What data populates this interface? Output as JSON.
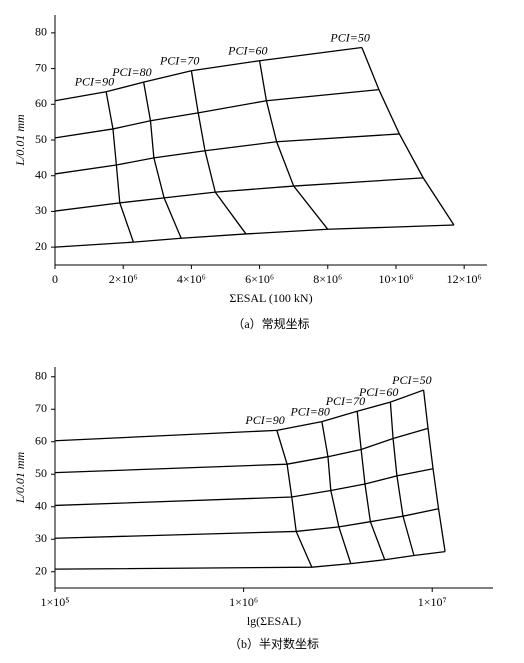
{
  "chart_data": [
    {
      "type": "line",
      "caption": "（a）常规坐标",
      "x_label": "ΣESAL (100 kN)",
      "y_label": "L/0.01 mm",
      "color": "#000000",
      "log_x": false,
      "xlim": [
        0,
        12670000
      ],
      "ylim": [
        15,
        85
      ],
      "xticks": [
        0,
        {
          "value": 2000000,
          "label": "2×10⁶"
        },
        {
          "value": 4000000,
          "label": "4×10⁶"
        },
        {
          "value": 6000000,
          "label": "6×10⁶"
        },
        {
          "value": 8000000,
          "label": "8×10⁶"
        },
        {
          "value": 10000000,
          "label": "10×10⁶"
        },
        {
          "value": 12000000,
          "label": "12×10⁶"
        }
      ],
      "yticks": [
        20,
        30,
        40,
        50,
        60,
        70,
        80
      ],
      "series": [
        {
          "x": [
            0,
            1500000,
            2600000,
            4000000,
            6000000,
            9000000
          ],
          "values": [
            61,
            63.5,
            66.2,
            69.4,
            72.2,
            75.9
          ]
        },
        {
          "x": [
            0,
            1700000,
            2800000,
            4200000,
            6200000,
            9500000
          ],
          "values": [
            50.6,
            53.1,
            55.4,
            57.6,
            61,
            64.1
          ]
        },
        {
          "x": [
            0,
            1800000,
            2900000,
            4400000,
            6500000,
            10100000
          ],
          "values": [
            40.5,
            43,
            45,
            47,
            49.5,
            51.7
          ]
        },
        {
          "x": [
            0,
            1900000,
            3200000,
            4700000,
            7000000,
            10800000
          ],
          "values": [
            30.1,
            32.4,
            33.8,
            35.4,
            37.1,
            39.4
          ]
        },
        {
          "x": [
            0,
            2300000,
            3700000,
            5600000,
            8000000,
            11700000
          ],
          "values": [
            20,
            21.4,
            22.5,
            23.7,
            25,
            26.2
          ]
        },
        {
          "name": "PCI=90",
          "x": [
            1500000,
            1700000,
            1800000,
            1900000,
            2300000
          ],
          "values": [
            63.5,
            53.1,
            43,
            32.4,
            21.4
          ]
        },
        {
          "name": "PCI=80",
          "x": [
            2600000,
            2800000,
            2900000,
            3200000,
            3700000
          ],
          "values": [
            66.2,
            55.4,
            45,
            33.8,
            22.5
          ]
        },
        {
          "name": "PCI=70",
          "x": [
            4000000,
            4200000,
            4400000,
            4700000,
            5600000
          ],
          "values": [
            69.4,
            57.6,
            47,
            35.4,
            23.7
          ]
        },
        {
          "name": "PCI=60",
          "x": [
            6000000,
            6200000,
            6500000,
            7000000,
            8000000
          ],
          "values": [
            72.2,
            61,
            49.5,
            37.1,
            25
          ]
        },
        {
          "name": "PCI=50",
          "x": [
            9000000,
            9500000,
            10100000,
            10800000,
            11700000
          ],
          "values": [
            75.9,
            64.1,
            51.7,
            39.4,
            26.2
          ]
        }
      ]
    },
    {
      "type": "line",
      "caption": "（b）半对数坐标",
      "x_label": "lg(ΣESAL)",
      "y_label": "L/0.01 mm",
      "color": "#000000",
      "log_x": true,
      "xlim": [
        100000,
        21000000
      ],
      "ylim": [
        15,
        83
      ],
      "xticks": [
        {
          "value": 100000,
          "label": "1×10⁵"
        },
        {
          "value": 1000000,
          "label": "1×10⁶"
        },
        {
          "value": 10000000,
          "label": "1×10⁷"
        }
      ],
      "yticks": [
        20,
        30,
        40,
        50,
        60,
        70,
        80
      ],
      "series": [
        {
          "x": [
            100000,
            1500000,
            2600000,
            4000000,
            6000000,
            9000000
          ],
          "values": [
            60.3,
            63.5,
            66.2,
            69.4,
            72.2,
            75.9
          ]
        },
        {
          "x": [
            100000,
            1700000,
            2800000,
            4200000,
            6200000,
            9500000
          ],
          "values": [
            50.5,
            53.1,
            55.4,
            57.6,
            61,
            64.1
          ]
        },
        {
          "x": [
            100000,
            1800000,
            2900000,
            4400000,
            6500000,
            10100000
          ],
          "values": [
            40.4,
            43,
            45,
            47,
            49.5,
            51.7
          ]
        },
        {
          "x": [
            100000,
            1900000,
            3200000,
            4700000,
            7000000,
            10800000
          ],
          "values": [
            30.3,
            32.4,
            33.8,
            35.4,
            37.1,
            39.4
          ]
        },
        {
          "x": [
            100000,
            2300000,
            3700000,
            5600000,
            8000000,
            11700000
          ],
          "values": [
            20.8,
            21.4,
            22.5,
            23.7,
            25,
            26.2
          ]
        },
        {
          "name": "PCI=90",
          "x": [
            1500000,
            1700000,
            1800000,
            1900000,
            2300000
          ],
          "values": [
            63.5,
            53.1,
            43,
            32.4,
            21.4
          ]
        },
        {
          "name": "PCI=80",
          "x": [
            2600000,
            2800000,
            2900000,
            3200000,
            3700000
          ],
          "values": [
            66.2,
            55.4,
            45,
            33.8,
            22.5
          ]
        },
        {
          "name": "PCI=70",
          "x": [
            4000000,
            4200000,
            4400000,
            4700000,
            5600000
          ],
          "values": [
            69.4,
            57.6,
            47,
            35.4,
            23.7
          ]
        },
        {
          "name": "PCI=60",
          "x": [
            6000000,
            6200000,
            6500000,
            7000000,
            8000000
          ],
          "values": [
            72.2,
            61,
            49.5,
            37.1,
            25
          ]
        },
        {
          "name": "PCI=50",
          "x": [
            9000000,
            9500000,
            10100000,
            10800000,
            11700000
          ],
          "values": [
            75.9,
            64.1,
            51.7,
            39.4,
            26.2
          ]
        }
      ]
    }
  ]
}
